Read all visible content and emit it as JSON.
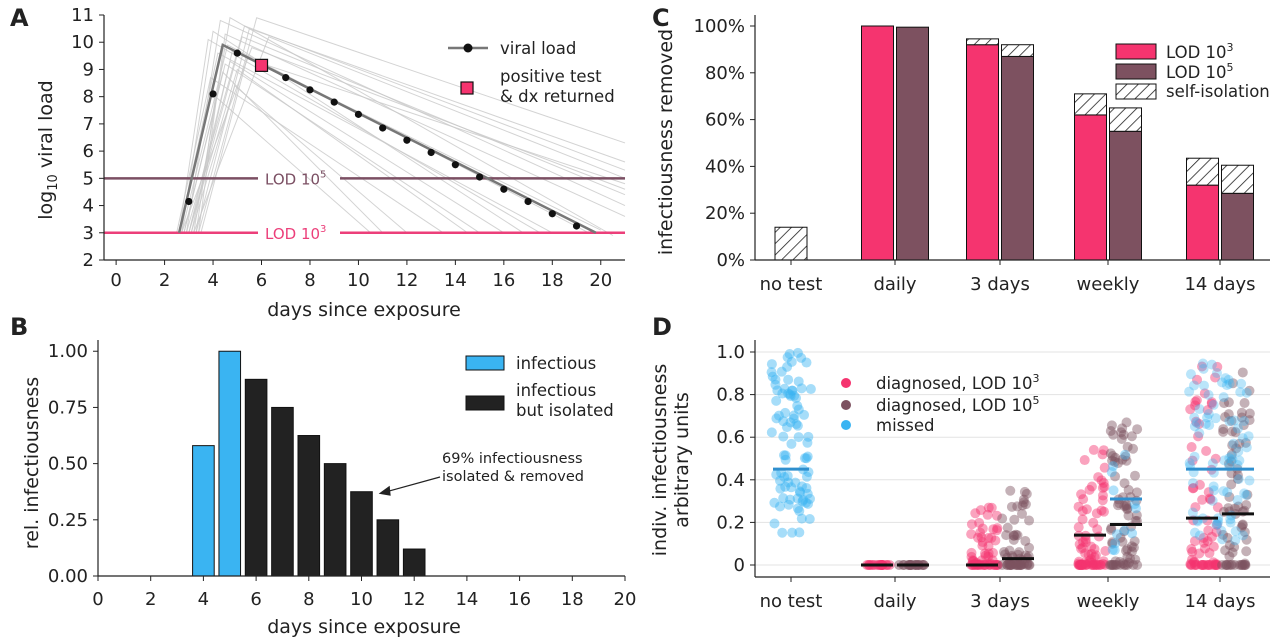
{
  "colors": {
    "pink": "#f5346f",
    "mauve": "#7d5160",
    "blue": "#3ab4f2",
    "blue_line": "#2f8fce",
    "black": "#222222",
    "gray": "#c8c8c8",
    "lod3": "#ec3f7a",
    "lod5": "#7b4f63"
  },
  "chart_data": [
    {
      "panel": "A",
      "type": "line",
      "xlabel": "days since exposure",
      "ylabel_base": "log",
      "ylabel_sub": "10",
      "ylabel_rest": " viral load",
      "xlim": [
        -0.5,
        21
      ],
      "ylim": [
        2,
        11
      ],
      "xticks": [
        0,
        2,
        4,
        6,
        8,
        10,
        12,
        14,
        16,
        18,
        20
      ],
      "yticks": [
        2,
        3,
        4,
        5,
        6,
        7,
        8,
        9,
        10,
        11
      ],
      "lod_lines": [
        {
          "y": 5,
          "label_base": "LOD 10",
          "label_sup": "5",
          "color": "#7b4f63"
        },
        {
          "y": 3,
          "label_base": "LOD 10",
          "label_sup": "3",
          "color": "#ec3f7a"
        }
      ],
      "main_trajectory": {
        "x": [
          2.6,
          4.4,
          19.8
        ],
        "y": [
          3.0,
          9.9,
          3.0
        ]
      },
      "samples": {
        "x": [
          3,
          4,
          5,
          6,
          7,
          8,
          9,
          10,
          11,
          12,
          13,
          14,
          15,
          16,
          17,
          18,
          19
        ],
        "y": [
          4.15,
          8.1,
          9.6,
          9.15,
          8.7,
          8.25,
          7.8,
          7.35,
          6.85,
          6.4,
          5.95,
          5.5,
          5.05,
          4.6,
          4.15,
          3.7,
          3.25
        ]
      },
      "positive_test": {
        "x": 6,
        "y": 9.15
      },
      "gray_trajectories": [
        [
          [
            2.7,
            3.0
          ],
          [
            4.0,
            10.4
          ],
          [
            16.8,
            3.0
          ]
        ],
        [
          [
            3.2,
            3.0
          ],
          [
            4.7,
            10.9
          ],
          [
            20.5,
            2.9
          ]
        ],
        [
          [
            2.5,
            3.0
          ],
          [
            3.9,
            8.7
          ],
          [
            13.5,
            3.0
          ]
        ],
        [
          [
            3.0,
            3.0
          ],
          [
            5.2,
            10.2
          ],
          [
            21.0,
            4.4
          ]
        ],
        [
          [
            2.8,
            3.0
          ],
          [
            4.5,
            9.2
          ],
          [
            15.0,
            3.0
          ]
        ],
        [
          [
            3.3,
            3.0
          ],
          [
            5.5,
            10.5
          ],
          [
            21.0,
            5.6
          ]
        ],
        [
          [
            2.6,
            3.0
          ],
          [
            4.2,
            9.6
          ],
          [
            18.0,
            3.0
          ]
        ],
        [
          [
            3.1,
            3.0
          ],
          [
            4.9,
            8.4
          ],
          [
            12.0,
            3.0
          ]
        ],
        [
          [
            2.9,
            3.0
          ],
          [
            4.3,
            10.8
          ],
          [
            21.0,
            4.0
          ]
        ],
        [
          [
            3.4,
            3.0
          ],
          [
            5.8,
            10.9
          ],
          [
            21.0,
            6.3
          ]
        ],
        [
          [
            2.7,
            3.0
          ],
          [
            4.6,
            9.9
          ],
          [
            19.5,
            3.0
          ]
        ],
        [
          [
            3.0,
            3.0
          ],
          [
            5.0,
            9.0
          ],
          [
            14.5,
            3.0
          ]
        ],
        [
          [
            3.2,
            3.0
          ],
          [
            6.3,
            10.2
          ],
          [
            21.0,
            5.0
          ]
        ],
        [
          [
            2.8,
            3.0
          ],
          [
            4.4,
            8.9
          ],
          [
            11.0,
            3.0
          ]
        ],
        [
          [
            3.5,
            3.0
          ],
          [
            5.4,
            9.4
          ],
          [
            21.0,
            4.8
          ]
        ],
        [
          [
            2.6,
            3.0
          ],
          [
            3.8,
            10.1
          ],
          [
            17.5,
            3.0
          ]
        ],
        [
          [
            3.1,
            3.0
          ],
          [
            4.8,
            9.7
          ],
          [
            20.0,
            3.1
          ]
        ],
        [
          [
            2.9,
            3.0
          ],
          [
            5.3,
            10.6
          ],
          [
            21.0,
            5.3
          ]
        ],
        [
          [
            3.3,
            3.0
          ],
          [
            4.1,
            8.0
          ],
          [
            10.5,
            3.0
          ]
        ],
        [
          [
            3.0,
            3.0
          ],
          [
            4.7,
            9.3
          ],
          [
            16.0,
            3.0
          ]
        ],
        [
          [
            2.7,
            3.0
          ],
          [
            5.6,
            9.8
          ],
          [
            21.0,
            4.6
          ]
        ],
        [
          [
            3.4,
            3.0
          ],
          [
            4.5,
            10.3
          ],
          [
            21.0,
            3.6
          ]
        ]
      ],
      "legend": [
        {
          "label": "viral load"
        },
        {
          "label": "positive test"
        },
        {
          "label": "& dx returned"
        }
      ]
    },
    {
      "panel": "B",
      "type": "bar",
      "xlabel": "days since exposure",
      "ylabel": "rel. infectiousness",
      "xlim": [
        0,
        20
      ],
      "ylim": [
        0,
        1.05
      ],
      "xticks": [
        0,
        2,
        4,
        6,
        8,
        10,
        12,
        14,
        16,
        18,
        20
      ],
      "yticks": [
        "0.00",
        "0.25",
        "0.50",
        "0.75",
        "1.00"
      ],
      "x": [
        4,
        5,
        6,
        7,
        8,
        9,
        10,
        11,
        12
      ],
      "values": [
        0.58,
        1.0,
        0.875,
        0.75,
        0.625,
        0.5,
        0.375,
        0.25,
        0.12
      ],
      "status": [
        "infectious",
        "infectious",
        "isolated",
        "isolated",
        "isolated",
        "isolated",
        "isolated",
        "isolated",
        "isolated"
      ],
      "legend": [
        "infectious",
        "infectious",
        "but isolated"
      ],
      "annotation": {
        "line1": "69% infectiousness",
        "line2": "isolated & removed",
        "target_x": 10.5,
        "target_y": 0.375
      }
    },
    {
      "panel": "C",
      "type": "bar",
      "xlabel": "",
      "ylabel": "infectiousness removed",
      "ylim": [
        0,
        100
      ],
      "yticks": [
        "0%",
        "20%",
        "40%",
        "60%",
        "80%",
        "100%"
      ],
      "categories": [
        "no test",
        "daily",
        "3 days",
        "weekly",
        "14 days"
      ],
      "series": [
        {
          "name_base": "LOD 10",
          "name_sup": "3",
          "values": [
            null,
            100,
            92,
            62,
            32
          ]
        },
        {
          "name_base": "LOD 10",
          "name_sup": "5",
          "values": [
            null,
            99.5,
            87,
            55,
            28.5
          ]
        }
      ],
      "self_isolation": {
        "name": "self-isolation",
        "lod3_totals": [
          14,
          100,
          94.5,
          71,
          43.5
        ],
        "lod5_totals": [
          null,
          99.5,
          92,
          65,
          40.5
        ]
      }
    },
    {
      "panel": "D",
      "type": "scatter",
      "xlabel": "",
      "ylabel_line1": "indiv. infectiousness",
      "ylabel_line2": "arbitrary units",
      "ylim": [
        -0.05,
        1.02
      ],
      "yticks": [
        "0",
        "0.2",
        "0.4",
        "0.6",
        "0.8",
        "1.0"
      ],
      "categories": [
        "no test",
        "daily",
        "3 days",
        "weekly",
        "14 days"
      ],
      "legend": [
        {
          "label_base": "diagnosed, LOD 10",
          "label_sup": "3"
        },
        {
          "label_base": "diagnosed, LOD 10",
          "label_sup": "5"
        },
        {
          "label": "missed"
        }
      ],
      "medians": {
        "no test": {
          "missed": 0.45
        },
        "daily": {
          "lod3": 0.0,
          "lod5": 0.0
        },
        "3 days": {
          "lod3": 0.0,
          "lod5": 0.03
        },
        "weekly": {
          "lod3": 0.14,
          "lod5": 0.19,
          "missed_lod5": 0.31
        },
        "14 days": {
          "lod3": 0.22,
          "lod5": 0.24,
          "missed": 0.45
        }
      },
      "spread": {
        "no test": {
          "missed_range": [
            0.15,
            1.0
          ]
        },
        "3 days": {
          "lod3_max": 0.28,
          "lod5_max": 0.35
        },
        "weekly": {
          "lod3_max": 0.6,
          "lod5_max": 0.7
        },
        "14 days": {
          "lod3_max": 0.97,
          "lod5_max": 0.91
        }
      }
    }
  ],
  "panel_labels": [
    "A",
    "B",
    "C",
    "D"
  ]
}
